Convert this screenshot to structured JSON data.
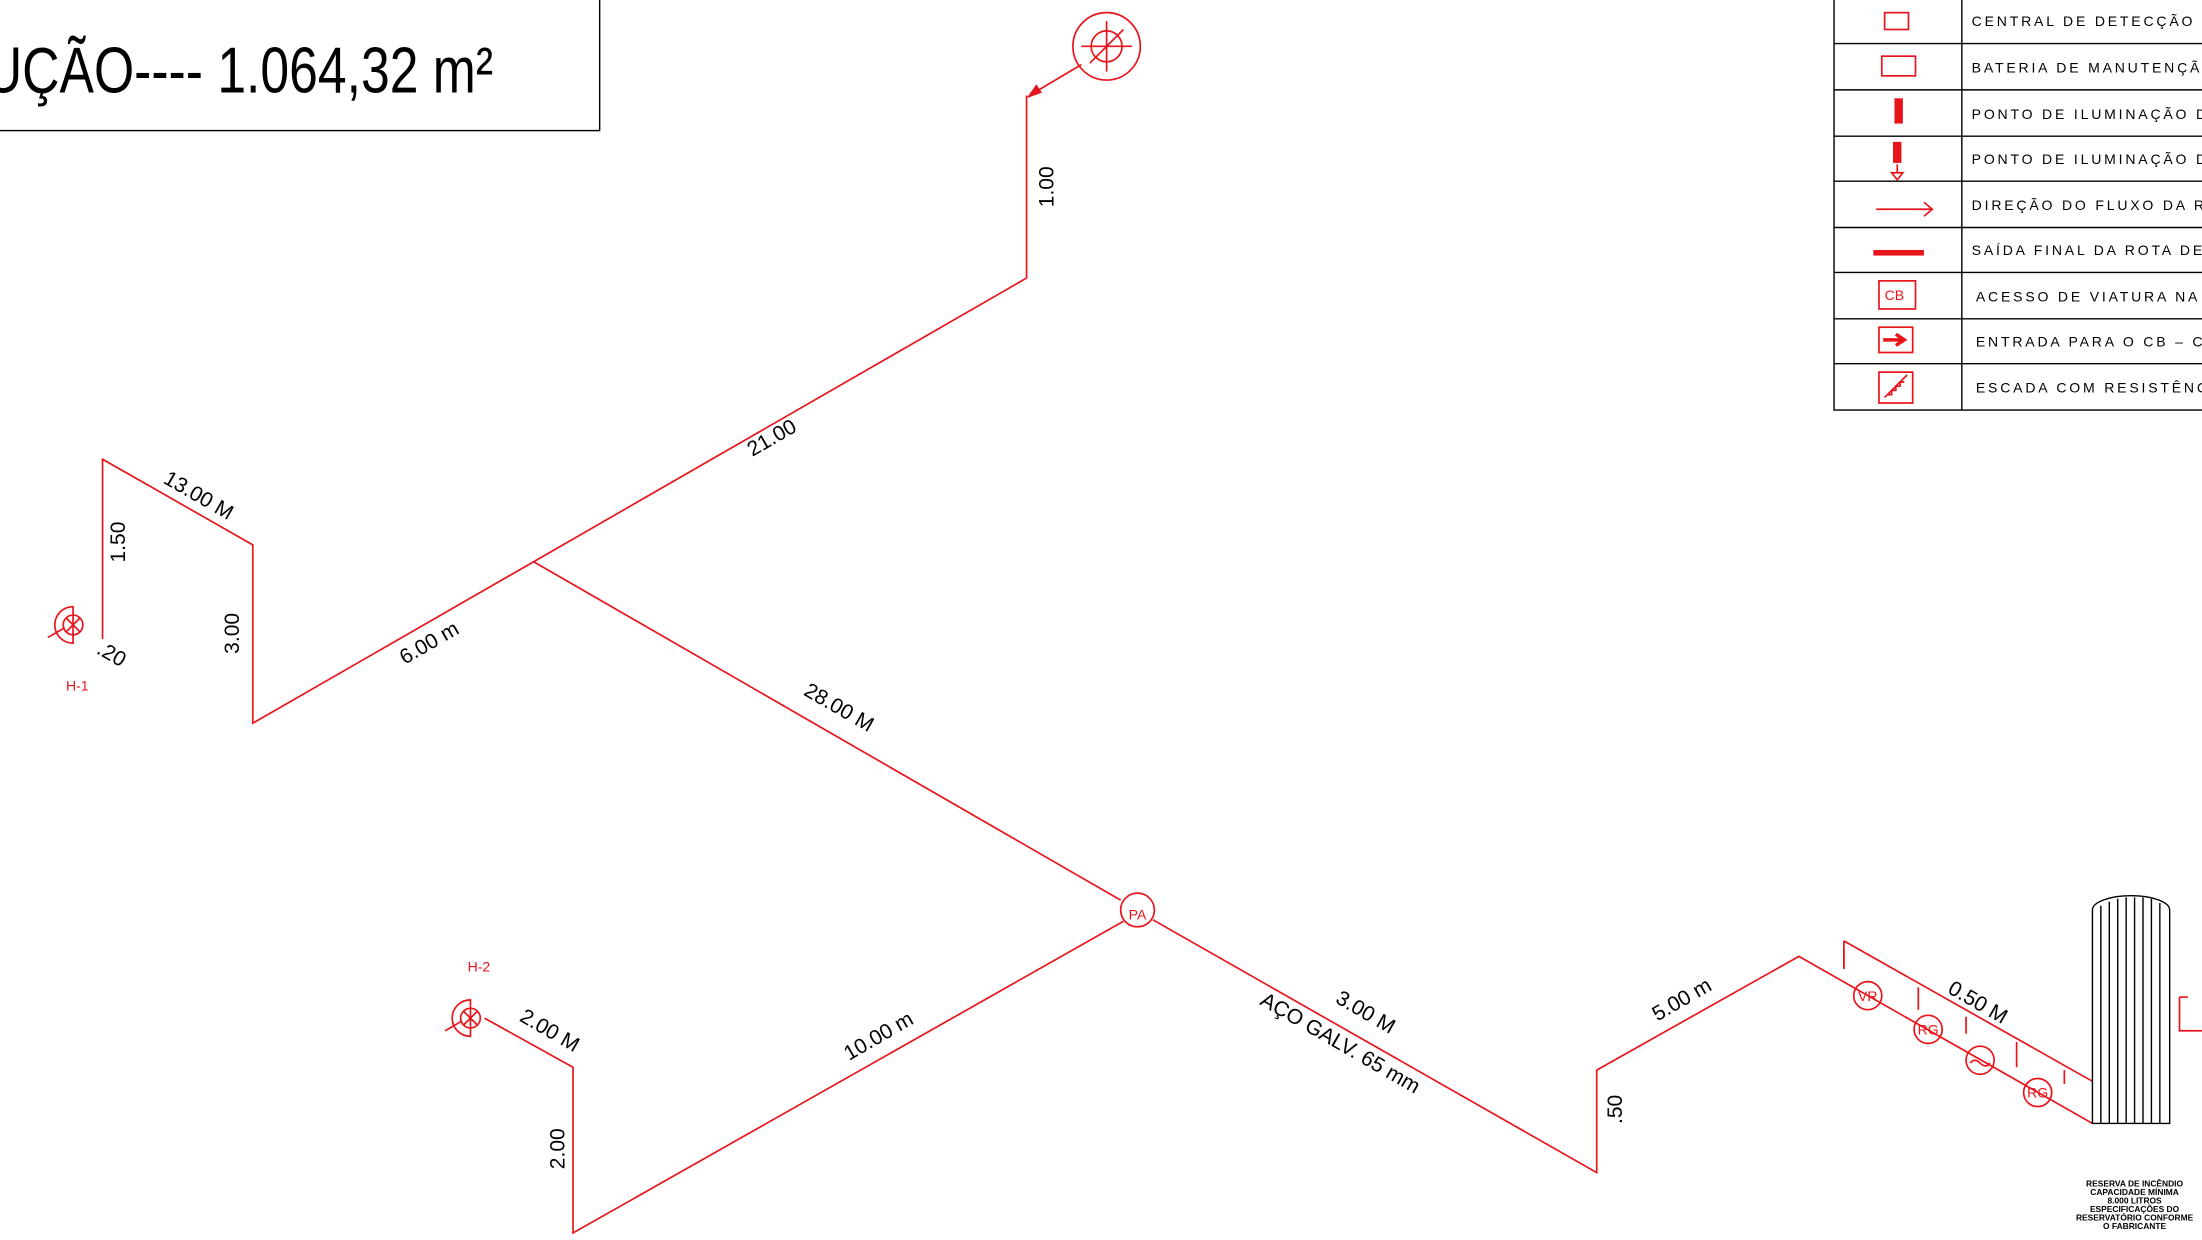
{
  "header": {
    "title": "UÇÃO---- 1.064,32 m²"
  },
  "legend": {
    "rows": [
      "CENTRAL DE DETECÇÃO E AL",
      "BATERIA DE MANUTENÇÃO DO",
      "PONTO DE ILUMINAÇÃO DE E",
      "PONTO DE ILUMINAÇÃO DE E",
      "DIREÇÃO DO FLUXO DA ROT",
      "SAÍDA FINAL DA ROTA DE FU",
      "ACESSO DE VIATURA NA ED",
      "ENTRADA PARA O CB – CO",
      "ESCADA COM RESISTÊNCIA A"
    ],
    "cb_icon": "CB"
  },
  "dimensions": [
    "1.00",
    "21.00",
    "13.00 M",
    "1.50",
    "3.00",
    ".20",
    "6.00 m",
    "28.00 M",
    "10.00 m",
    "2.00 M",
    "2.00",
    "3.00 M",
    "5.00 m",
    ".50",
    "0.50 M"
  ],
  "pipe_note": "AÇO GALV. 65 mm",
  "nodes": {
    "pa": "PA",
    "h1": "H-1",
    "h2": "H-2",
    "vr": "VR",
    "rg1": "RG",
    "rg2": "RG"
  },
  "tank_note": [
    "RESERVA DE INCÊNDIO",
    "CAPACIDADE MÍNIMA",
    "8.000 LITROS",
    "ESPECIFICAÇÕES DO",
    "RESERVATÓRIO CONFORME",
    "O FABRICANTE"
  ]
}
